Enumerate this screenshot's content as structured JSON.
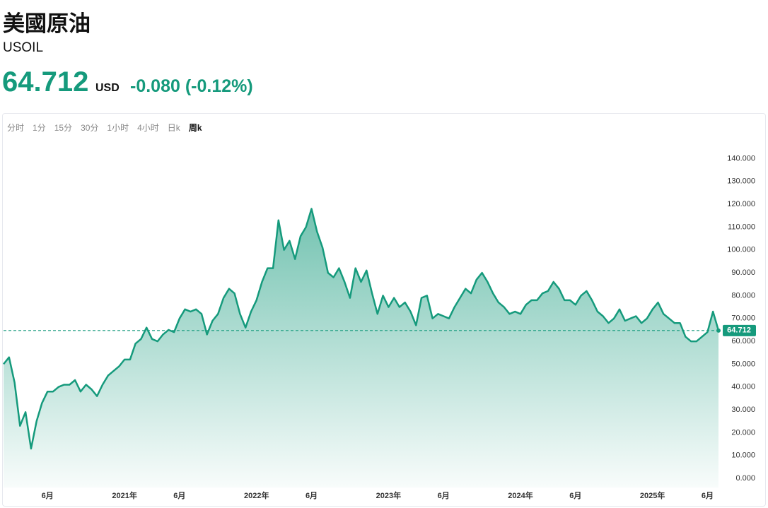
{
  "header": {
    "title": "美國原油",
    "symbol": "USOIL",
    "price": "64.712",
    "currency": "USD",
    "change": "-0.080 (-0.12%)"
  },
  "toolbar": {
    "items": [
      "分时",
      "1分",
      "15分",
      "30分",
      "1小时",
      "4小时",
      "日k",
      "周k"
    ],
    "active": 7
  },
  "chart_data": {
    "type": "area",
    "color": "#159a7c",
    "categories": [
      null,
      null,
      null,
      null,
      null,
      null,
      null,
      null,
      "6月",
      null,
      null,
      null,
      null,
      null,
      null,
      null,
      null,
      null,
      null,
      null,
      null,
      null,
      "2021年",
      null,
      null,
      null,
      null,
      null,
      null,
      null,
      null,
      null,
      "6月",
      null,
      null,
      null,
      null,
      null,
      null,
      null,
      null,
      null,
      null,
      null,
      null,
      null,
      "2022年",
      null,
      null,
      null,
      null,
      null,
      null,
      null,
      null,
      null,
      "6月",
      null,
      null,
      null,
      null,
      null,
      null,
      null,
      null,
      null,
      null,
      null,
      null,
      null,
      "2023年",
      null,
      null,
      null,
      null,
      null,
      null,
      null,
      null,
      null,
      "6月",
      null,
      null,
      null,
      null,
      null,
      null,
      null,
      null,
      null,
      null,
      null,
      null,
      null,
      "2024年",
      null,
      null,
      null,
      null,
      null,
      null,
      null,
      null,
      null,
      "6月",
      null,
      null,
      null,
      null,
      null,
      null,
      null,
      null,
      null,
      null,
      null,
      null,
      null,
      "2025年",
      null,
      null,
      null,
      null,
      null,
      null,
      null,
      null,
      null,
      "6月",
      null,
      null
    ],
    "values": [
      50,
      53,
      42,
      23,
      29,
      13,
      25,
      33,
      38,
      38,
      40,
      41,
      41,
      43,
      38,
      41,
      39,
      36,
      41,
      45,
      47,
      49,
      52,
      52,
      59,
      61,
      66,
      61,
      60,
      63,
      65,
      64,
      70,
      74,
      73,
      74,
      72,
      63,
      69,
      72,
      79,
      83,
      81,
      72,
      66,
      73,
      78,
      86,
      92,
      92,
      113,
      100,
      104,
      96,
      106,
      110,
      118,
      108,
      101,
      90,
      88,
      92,
      86,
      79,
      92,
      86,
      91,
      81,
      72,
      80,
      75,
      79,
      75,
      77,
      73,
      67,
      79,
      80,
      70,
      72,
      71,
      70,
      75,
      79,
      83,
      81,
      87,
      90,
      86,
      81,
      77,
      75,
      72,
      73,
      72,
      76,
      78,
      78,
      81,
      82,
      86,
      83,
      78,
      78,
      76,
      80,
      82,
      78,
      73,
      71,
      68,
      70,
      74,
      69,
      70,
      71,
      68,
      70,
      74,
      77,
      72,
      70,
      68,
      68,
      62,
      60,
      60,
      62,
      64,
      73,
      64.712
    ],
    "last_value": 64.712,
    "ylim": [
      -4,
      146
    ],
    "yticks": [
      {
        "value": 0,
        "label": "0.000"
      },
      {
        "value": 10,
        "label": "10.000"
      },
      {
        "value": 20,
        "label": "20.000"
      },
      {
        "value": 30,
        "label": "30.000"
      },
      {
        "value": 40,
        "label": "40.000"
      },
      {
        "value": 50,
        "label": "50.000"
      },
      {
        "value": 60,
        "label": "60.000"
      },
      {
        "value": 70,
        "label": "70.000"
      },
      {
        "value": 80,
        "label": "80.000"
      },
      {
        "value": 90,
        "label": "90.000"
      },
      {
        "value": 100,
        "label": "100.000"
      },
      {
        "value": 110,
        "label": "110.000"
      },
      {
        "value": 120,
        "label": "120.000"
      },
      {
        "value": 130,
        "label": "130.000"
      },
      {
        "value": 140,
        "label": "140.000"
      }
    ]
  }
}
